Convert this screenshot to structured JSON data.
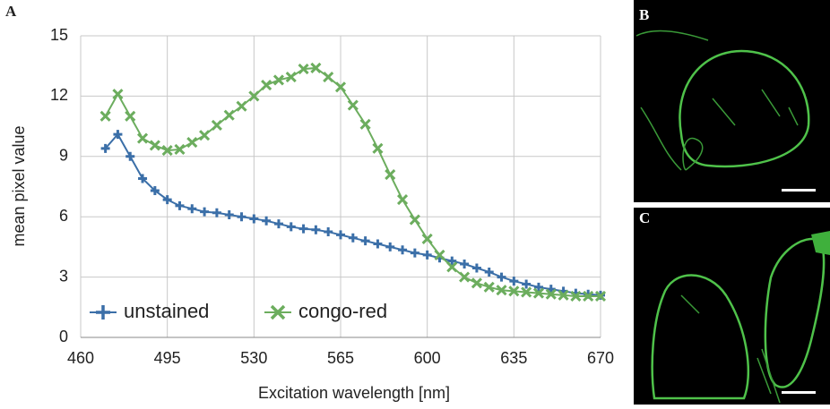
{
  "chart_data": {
    "type": "line",
    "x_label": "Excitation wavelength [nm]",
    "y_label": "mean pixel value",
    "x": [
      470,
      475,
      480,
      485,
      490,
      495,
      500,
      505,
      510,
      515,
      520,
      525,
      530,
      535,
      540,
      545,
      550,
      555,
      560,
      565,
      570,
      575,
      580,
      585,
      590,
      595,
      600,
      605,
      610,
      615,
      620,
      625,
      630,
      635,
      640,
      645,
      650,
      655,
      660,
      665,
      670
    ],
    "series": [
      {
        "name": "unstained",
        "color": "#3b6fa8",
        "marker": "plus",
        "values": [
          9.4,
          10.1,
          9.0,
          7.9,
          7.3,
          6.85,
          6.55,
          6.4,
          6.25,
          6.2,
          6.1,
          6.0,
          5.9,
          5.8,
          5.65,
          5.5,
          5.4,
          5.35,
          5.25,
          5.1,
          4.95,
          4.8,
          4.65,
          4.5,
          4.35,
          4.2,
          4.1,
          3.95,
          3.8,
          3.65,
          3.45,
          3.25,
          3.0,
          2.8,
          2.65,
          2.5,
          2.4,
          2.3,
          2.2,
          2.15,
          2.1
        ]
      },
      {
        "name": "congo-red",
        "color": "#6cad5e",
        "marker": "cross",
        "values": [
          11.0,
          12.1,
          11.0,
          9.9,
          9.55,
          9.3,
          9.35,
          9.7,
          10.05,
          10.55,
          11.05,
          11.5,
          12.0,
          12.55,
          12.8,
          12.95,
          13.35,
          13.4,
          12.95,
          12.45,
          11.55,
          10.6,
          9.4,
          8.1,
          6.85,
          5.85,
          4.9,
          4.1,
          3.5,
          3.0,
          2.7,
          2.5,
          2.35,
          2.3,
          2.25,
          2.2,
          2.15,
          2.1,
          2.05,
          2.05,
          2.05
        ]
      }
    ],
    "xlim": [
      460,
      670
    ],
    "xticks": [
      460,
      495,
      530,
      565,
      600,
      635,
      670
    ],
    "ylim": [
      0,
      15
    ],
    "yticks": [
      0,
      3,
      6,
      9,
      12,
      15
    ],
    "grid": true
  },
  "panels": [
    "A",
    "B",
    "C"
  ]
}
